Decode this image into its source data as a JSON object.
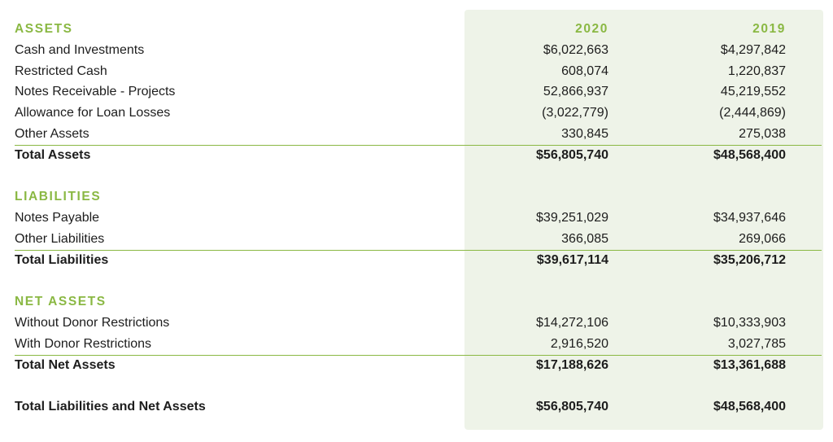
{
  "columns": {
    "year_a": "2020",
    "year_b": "2019"
  },
  "assets": {
    "heading": "ASSETS",
    "rows": [
      {
        "label": "Cash and Investments",
        "y2020": "$6,022,663",
        "y2019": "$4,297,842"
      },
      {
        "label": "Restricted Cash",
        "y2020": "608,074",
        "y2019": "1,220,837"
      },
      {
        "label": "Notes Receivable - Projects",
        "y2020": "52,866,937",
        "y2019": "45,219,552"
      },
      {
        "label": "Allowance for Loan Losses",
        "y2020": "(3,022,779)",
        "y2019": "(2,444,869)"
      },
      {
        "label": "Other Assets",
        "y2020": "330,845",
        "y2019": "275,038"
      }
    ],
    "total": {
      "label": "Total Assets",
      "y2020": "$56,805,740",
      "y2019": "$48,568,400"
    }
  },
  "liabilities": {
    "heading": "LIABILITIES",
    "rows": [
      {
        "label": "Notes Payable",
        "y2020": "$39,251,029",
        "y2019": "$34,937,646"
      },
      {
        "label": "Other Liabilities",
        "y2020": "366,085",
        "y2019": "269,066"
      }
    ],
    "total": {
      "label": "Total Liabilities",
      "y2020": "$39,617,114",
      "y2019": "$35,206,712"
    }
  },
  "net_assets": {
    "heading": "NET ASSETS",
    "rows": [
      {
        "label": "Without Donor Restrictions",
        "y2020": "$14,272,106",
        "y2019": "$10,333,903"
      },
      {
        "label": "With Donor Restrictions",
        "y2020": "2,916,520",
        "y2019": "3,027,785"
      }
    ],
    "total": {
      "label": "Total Net Assets",
      "y2020": "$17,188,626",
      "y2019": "$13,361,688"
    }
  },
  "grand_total": {
    "label": "Total Liabilities and Net Assets",
    "y2020": "$56,805,740",
    "y2019": "$48,568,400"
  },
  "colors": {
    "accent": "#8ab843",
    "column_shade": "#eef3e8",
    "text": "#1d1d1d"
  }
}
